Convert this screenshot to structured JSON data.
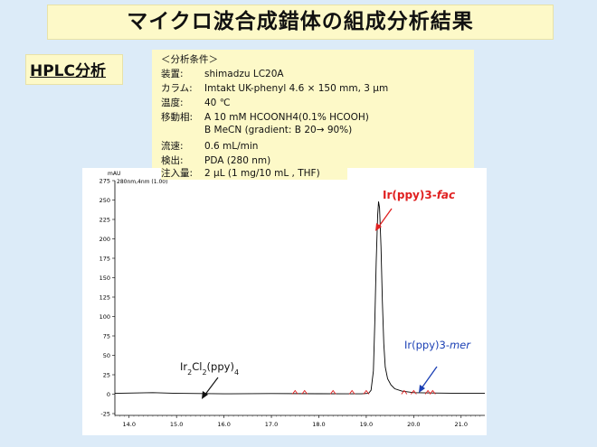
{
  "header": {
    "title": "マイクロ波合成錯体の組成分析結果"
  },
  "section": {
    "label": "HPLC分析"
  },
  "conditions": {
    "heading": "＜分析条件＞",
    "rows": [
      {
        "key": "装置:",
        "value": "shimadzu LC20A"
      },
      {
        "key": "カラム:",
        "value": "Imtakt  UK-phenyl   4.6 × 150 mm, 3 μm"
      },
      {
        "key": "温度:",
        "value": "40 ℃"
      },
      {
        "key": "移動相:",
        "value": "A 10 mM HCOONH4(0.1% HCOOH)"
      },
      {
        "key": "",
        "value": "B  MeCN  (gradient: B 20→ 90%)"
      },
      {
        "key": "流速:",
        "value": "0.6 mL/min"
      },
      {
        "key": "検出:",
        "value": "PDA (280 nm)"
      },
      {
        "key": "注入量:",
        "value": "2 μL (1 mg/10 mL , THF)"
      }
    ]
  },
  "chart_data": {
    "type": "line",
    "unit_label": "mAU",
    "trace_label": "280nm,4nm (1.00)",
    "xlim": [
      13.7,
      21.5
    ],
    "ylim": [
      -25,
      275
    ],
    "x_ticks": [
      14.0,
      15.0,
      16.0,
      17.0,
      18.0,
      19.0,
      20.0,
      21.0
    ],
    "x_tick_labels": [
      "14.0",
      "15.0",
      "16.0",
      "17.0",
      "18.0",
      "19.0",
      "20.0",
      "21.0"
    ],
    "y_ticks": [
      275,
      250,
      225,
      200,
      175,
      150,
      125,
      100,
      75,
      50,
      25,
      0,
      -25
    ],
    "series": [
      {
        "x": [
          13.7,
          14.5,
          15.0,
          16.0,
          17.0,
          18.0,
          18.9,
          19.05,
          19.1,
          19.15,
          19.18,
          19.21,
          19.24,
          19.26,
          19.28,
          19.31,
          19.34,
          19.37,
          19.4,
          19.45,
          19.52,
          19.6,
          19.75,
          20.0,
          20.4,
          21.0,
          21.5
        ],
        "y": [
          1,
          2,
          1,
          0.5,
          0.8,
          0.6,
          0.5,
          1,
          5,
          30,
          90,
          170,
          230,
          248,
          240,
          190,
          120,
          65,
          35,
          20,
          12,
          7,
          4,
          2,
          1.5,
          1,
          1
        ]
      }
    ],
    "minor_marks_x": [
      17.5,
      17.7,
      18.3,
      18.7,
      19.0,
      19.8,
      20.0,
      20.3,
      20.4
    ],
    "annotations": [
      {
        "text": "Ir(ppy)3-",
        "italic": "fac",
        "color": "#e02020"
      },
      {
        "text": "Ir(ppy)3-",
        "italic": "mer",
        "color": "#1a3fb4"
      },
      {
        "text_main": "Ir",
        "sub1": "2",
        "mid": "Cl",
        "sub2": "2",
        "tail": "(ppy)",
        "sub3": "4",
        "color": "#111111"
      }
    ]
  }
}
